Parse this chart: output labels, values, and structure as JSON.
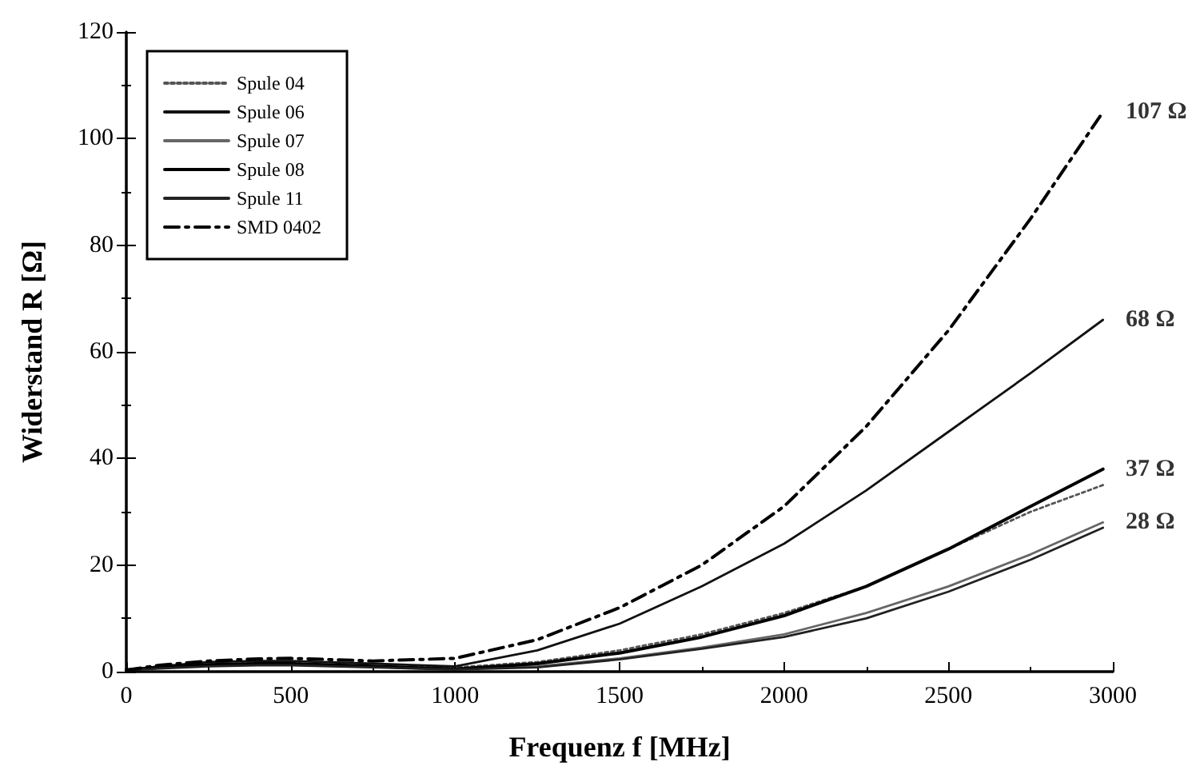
{
  "chart_data": {
    "type": "line",
    "xlabel": "Frequenz f [MHz]",
    "ylabel": "Widerstand R [Ω]",
    "x": [
      0,
      100,
      250,
      400,
      500,
      750,
      1000,
      1250,
      1500,
      1750,
      2000,
      2250,
      2500,
      2750,
      2970
    ],
    "xlim": [
      0,
      3000
    ],
    "xticks": [
      0,
      500,
      1000,
      1500,
      2000,
      2500,
      3000
    ],
    "ylim": [
      0,
      120
    ],
    "yticks": [
      0,
      20,
      40,
      60,
      80,
      100,
      120
    ],
    "grid": false,
    "legend": "top left",
    "marker": "none",
    "series": [
      {
        "name": "Spule 04",
        "color": "#555555",
        "line_style": "dotted",
        "values": [
          0.3,
          0.8,
          1.3,
          1.6,
          1.6,
          1,
          0.8,
          1.8,
          4,
          7,
          11,
          16,
          23,
          30,
          35
        ]
      },
      {
        "name": "Spule 06",
        "color": "#111111",
        "line_style": "solid",
        "values": [
          0.3,
          1,
          1.8,
          2,
          2,
          1.5,
          1,
          4,
          9,
          16,
          24,
          34,
          45,
          56,
          66
        ]
      },
      {
        "name": "Spule 07",
        "color": "#666666",
        "line_style": "solid",
        "values": [
          0.3,
          0.7,
          1.2,
          1.4,
          1.3,
          0.9,
          0.5,
          1,
          2.5,
          4.5,
          7,
          11,
          16,
          22,
          28
        ]
      },
      {
        "name": "Spule 08",
        "color": "#000000",
        "line_style": "solid",
        "values": [
          0.3,
          0.8,
          1.3,
          1.5,
          1.5,
          1,
          0.5,
          1.5,
          3.5,
          6.5,
          10.5,
          16,
          23,
          31,
          38
        ]
      },
      {
        "name": "Spule 11",
        "color": "#222222",
        "line_style": "solid",
        "values": [
          0.3,
          0.6,
          1,
          1.2,
          1.2,
          0.8,
          0.4,
          0.8,
          2.3,
          4.3,
          6.5,
          10,
          15,
          21,
          27
        ]
      },
      {
        "name": "SMD 0402",
        "color": "#000000",
        "line_style": "dashdot",
        "values": [
          0.3,
          1.2,
          2,
          2.4,
          2.5,
          2,
          2.5,
          6,
          12,
          20,
          31,
          46,
          64,
          85,
          105
        ]
      }
    ],
    "annotations": [
      "107 Ω",
      "68 Ω",
      "37 Ω",
      "28 Ω"
    ]
  }
}
